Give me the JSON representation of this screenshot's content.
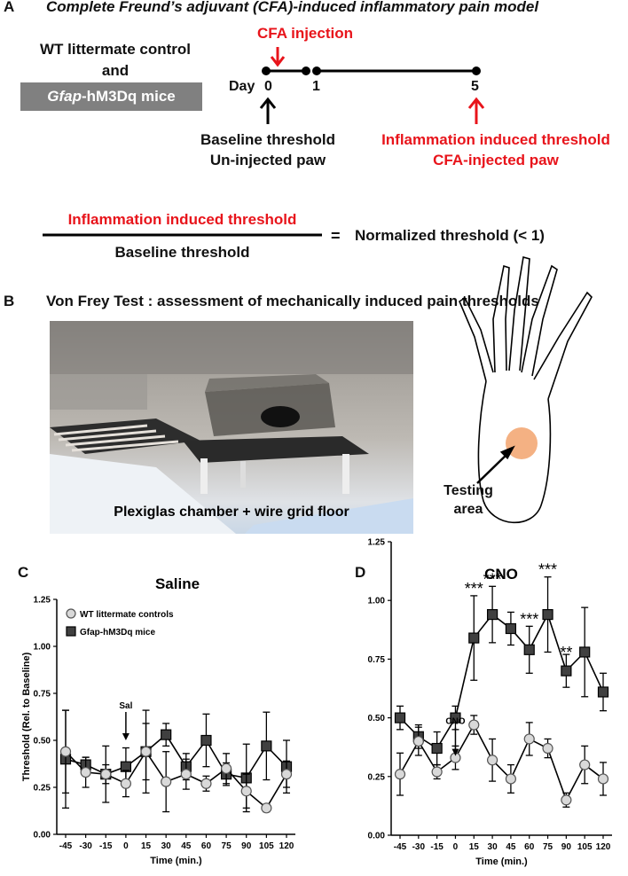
{
  "panel_a": {
    "letter": "A",
    "title": "Complete Freund’s adjuvant (CFA)-induced inflammatory pain model",
    "group_line1": "WT littermate control",
    "group_and": "and",
    "gfap_italic": "Gfap",
    "gfap_rest": "-hM3Dq mice",
    "cfa_injection": "CFA injection",
    "day_label": "Day",
    "day_0": "0",
    "day_1": "1",
    "day_5": "5",
    "baseline_line1": "Baseline threshold",
    "baseline_line2": "Un-injected paw",
    "inflam_line1": "Inflammation induced threshold",
    "inflam_line2": "CFA-injected paw",
    "fraction_numerator": "Inflammation induced threshold",
    "fraction_denominator": "Baseline threshold",
    "equals": "=",
    "normalized": "Normalized threshold (< 1)",
    "colors": {
      "red": "#e8141b",
      "gray_box": "#808080"
    }
  },
  "panel_b": {
    "letter": "B",
    "title": "Von Frey Test : assessment of mechanically induced pain thresholds",
    "photo_caption": "Plexiglas chamber + wire grid floor",
    "testing_line1": "Testing",
    "testing_line2": "area",
    "colors": {
      "testing_spot": "#f4b183"
    }
  },
  "panel_c": {
    "letter": "C",
    "title": "Saline",
    "arrow_label": "Sal"
  },
  "panel_d": {
    "letter": "D",
    "title": "CNO",
    "arrow_label": "CNO"
  },
  "chart_data": [
    {
      "type": "line",
      "title": "Saline",
      "xlabel": "Time (min.)",
      "ylabel": "Threshold (Rel. to Baseline)",
      "x": [
        -45,
        -30,
        -15,
        0,
        15,
        30,
        45,
        60,
        75,
        90,
        105,
        120
      ],
      "ylim": [
        0,
        1.25
      ],
      "yticks": [
        "0.00",
        "0.25",
        "0.50",
        "0.75",
        "1.00",
        "1.25"
      ],
      "legend_position": "top-left",
      "series": [
        {
          "name": "WT littermate controls",
          "marker": "circle",
          "color": "#d9d9d9",
          "values": [
            0.44,
            0.33,
            0.32,
            0.27,
            0.44,
            0.28,
            0.32,
            0.27,
            0.35,
            0.23,
            0.14,
            0.32
          ],
          "error": [
            0.22,
            0.08,
            0.15,
            0.07,
            0.15,
            0.16,
            0.08,
            0.04,
            0.08,
            0.09,
            0.02,
            0.07
          ]
        },
        {
          "name": "Gfap-hM3Dq mice",
          "marker": "square",
          "color": "#404040",
          "values": [
            0.4,
            0.37,
            0.32,
            0.36,
            0.44,
            0.53,
            0.36,
            0.5,
            0.32,
            0.3,
            0.47,
            0.36
          ],
          "error": [
            0.26,
            0.04,
            0.05,
            0.1,
            0.22,
            0.06,
            0.07,
            0.14,
            0.06,
            0.18,
            0.18,
            0.14
          ]
        }
      ]
    },
    {
      "type": "line",
      "title": "CNO",
      "xlabel": "Time (min.)",
      "ylabel": "",
      "x": [
        -45,
        -30,
        -15,
        0,
        15,
        30,
        45,
        60,
        75,
        90,
        105,
        120
      ],
      "ylim": [
        0,
        1.25
      ],
      "yticks": [
        "0.00",
        "0.25",
        "0.50",
        "0.75",
        "1.00",
        "1.25"
      ],
      "series": [
        {
          "name": "WT littermate controls",
          "marker": "circle",
          "color": "#d9d9d9",
          "values": [
            0.26,
            0.4,
            0.27,
            0.33,
            0.47,
            0.32,
            0.24,
            0.41,
            0.37,
            0.15,
            0.3,
            0.24
          ],
          "error": [
            0.09,
            0.06,
            0.03,
            0.05,
            0.04,
            0.09,
            0.06,
            0.07,
            0.04,
            0.03,
            0.08,
            0.07
          ]
        },
        {
          "name": "Gfap-hM3Dq mice",
          "marker": "square",
          "color": "#404040",
          "values": [
            0.5,
            0.42,
            0.37,
            0.5,
            0.84,
            0.94,
            0.88,
            0.79,
            0.94,
            0.7,
            0.78,
            0.61
          ],
          "error": [
            0.05,
            0.05,
            0.07,
            0.05,
            0.18,
            0.12,
            0.07,
            0.1,
            0.16,
            0.07,
            0.19,
            0.08
          ]
        }
      ],
      "annotations": [
        {
          "text": "***",
          "x": 15
        },
        {
          "text": "***",
          "x": 30
        },
        {
          "text": "***",
          "x": 60
        },
        {
          "text": "***",
          "x": 75
        },
        {
          "text": "**",
          "x": 90
        }
      ]
    }
  ]
}
